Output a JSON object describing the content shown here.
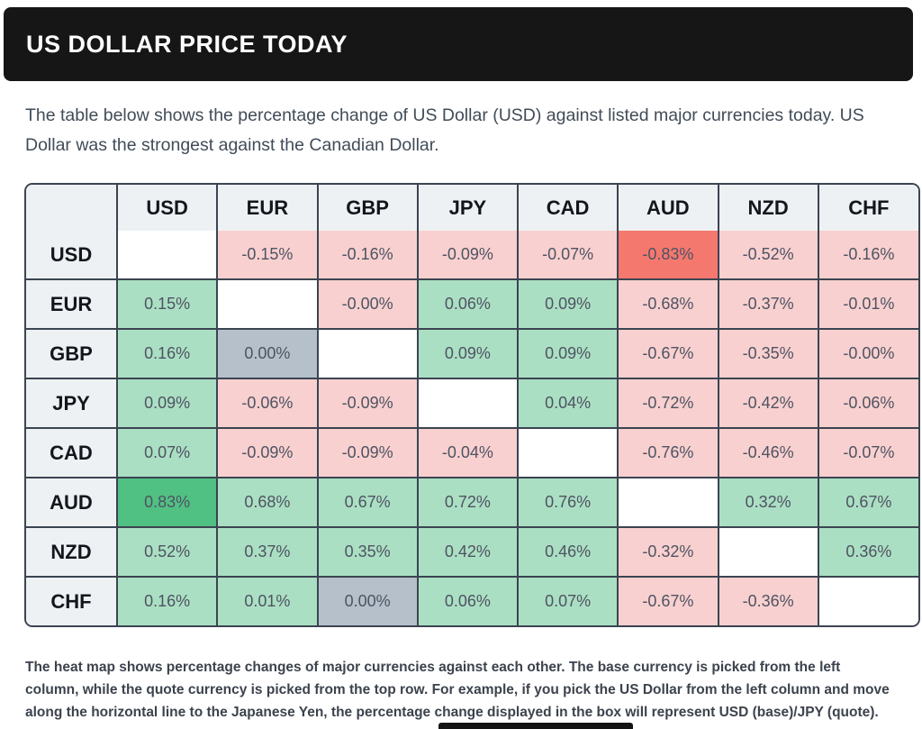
{
  "header": {
    "title": "US DOLLAR PRICE TODAY"
  },
  "description": "The table below shows the percentage change of US Dollar (USD) against listed major currencies today. US Dollar was the strongest against the Canadian Dollar.",
  "footnote": "The heat map shows percentage changes of major currencies against each other. The base currency is picked from the left column, while the quote currency is picked from the top row. For example, if you pick the US Dollar from the left column and move along the horizontal line to the Japanese Yen, the percentage change displayed in the box will represent USD (base)/JPY (quote).",
  "palette": {
    "header_bar_bg": "#161616",
    "header_cell_bg": "#eef1f3",
    "table_border": "#3b4451",
    "positive": "#abdfc3",
    "positive_strong": "#51c083",
    "negative": "#f8d0cf",
    "negative_strong": "#f5786f",
    "neutral": "#b5c0ca",
    "empty": "#ffffff"
  },
  "chart_data": {
    "type": "heatmap",
    "title": "US DOLLAR PRICE TODAY",
    "unit": "%",
    "columns": [
      "USD",
      "EUR",
      "GBP",
      "JPY",
      "CAD",
      "AUD",
      "NZD",
      "CHF"
    ],
    "rows": [
      "USD",
      "EUR",
      "GBP",
      "JPY",
      "CAD",
      "AUD",
      "NZD",
      "CHF"
    ],
    "values": [
      [
        null,
        -0.15,
        -0.16,
        -0.09,
        -0.07,
        -0.83,
        -0.52,
        -0.16
      ],
      [
        0.15,
        null,
        -0.0,
        0.06,
        0.09,
        -0.68,
        -0.37,
        -0.01
      ],
      [
        0.16,
        0.0,
        null,
        0.09,
        0.09,
        -0.67,
        -0.35,
        -0.0
      ],
      [
        0.09,
        -0.06,
        -0.09,
        null,
        0.04,
        -0.72,
        -0.42,
        -0.06
      ],
      [
        0.07,
        -0.09,
        -0.09,
        -0.04,
        null,
        -0.76,
        -0.46,
        -0.07
      ],
      [
        0.83,
        0.68,
        0.67,
        0.72,
        0.76,
        null,
        0.32,
        0.67
      ],
      [
        0.52,
        0.37,
        0.35,
        0.42,
        0.46,
        -0.32,
        null,
        0.36
      ],
      [
        0.16,
        0.01,
        0.0,
        0.06,
        0.07,
        -0.67,
        -0.36,
        null
      ]
    ],
    "labels": [
      [
        "",
        "-0.15%",
        "-0.16%",
        "-0.09%",
        "-0.07%",
        "-0.83%",
        "-0.52%",
        "-0.16%"
      ],
      [
        "0.15%",
        "",
        "-0.00%",
        "0.06%",
        "0.09%",
        "-0.68%",
        "-0.37%",
        "-0.01%"
      ],
      [
        "0.16%",
        "0.00%",
        "",
        "0.09%",
        "0.09%",
        "-0.67%",
        "-0.35%",
        "-0.00%"
      ],
      [
        "0.09%",
        "-0.06%",
        "-0.09%",
        "",
        "0.04%",
        "-0.72%",
        "-0.42%",
        "-0.06%"
      ],
      [
        "0.07%",
        "-0.09%",
        "-0.09%",
        "-0.04%",
        "",
        "-0.76%",
        "-0.46%",
        "-0.07%"
      ],
      [
        "0.83%",
        "0.68%",
        "0.67%",
        "0.72%",
        "0.76%",
        "",
        "0.32%",
        "0.67%"
      ],
      [
        "0.52%",
        "0.37%",
        "0.35%",
        "0.42%",
        "0.46%",
        "-0.32%",
        "",
        "0.36%"
      ],
      [
        "0.16%",
        "0.01%",
        "0.00%",
        "0.06%",
        "0.07%",
        "-0.67%",
        "-0.36%",
        ""
      ]
    ]
  }
}
